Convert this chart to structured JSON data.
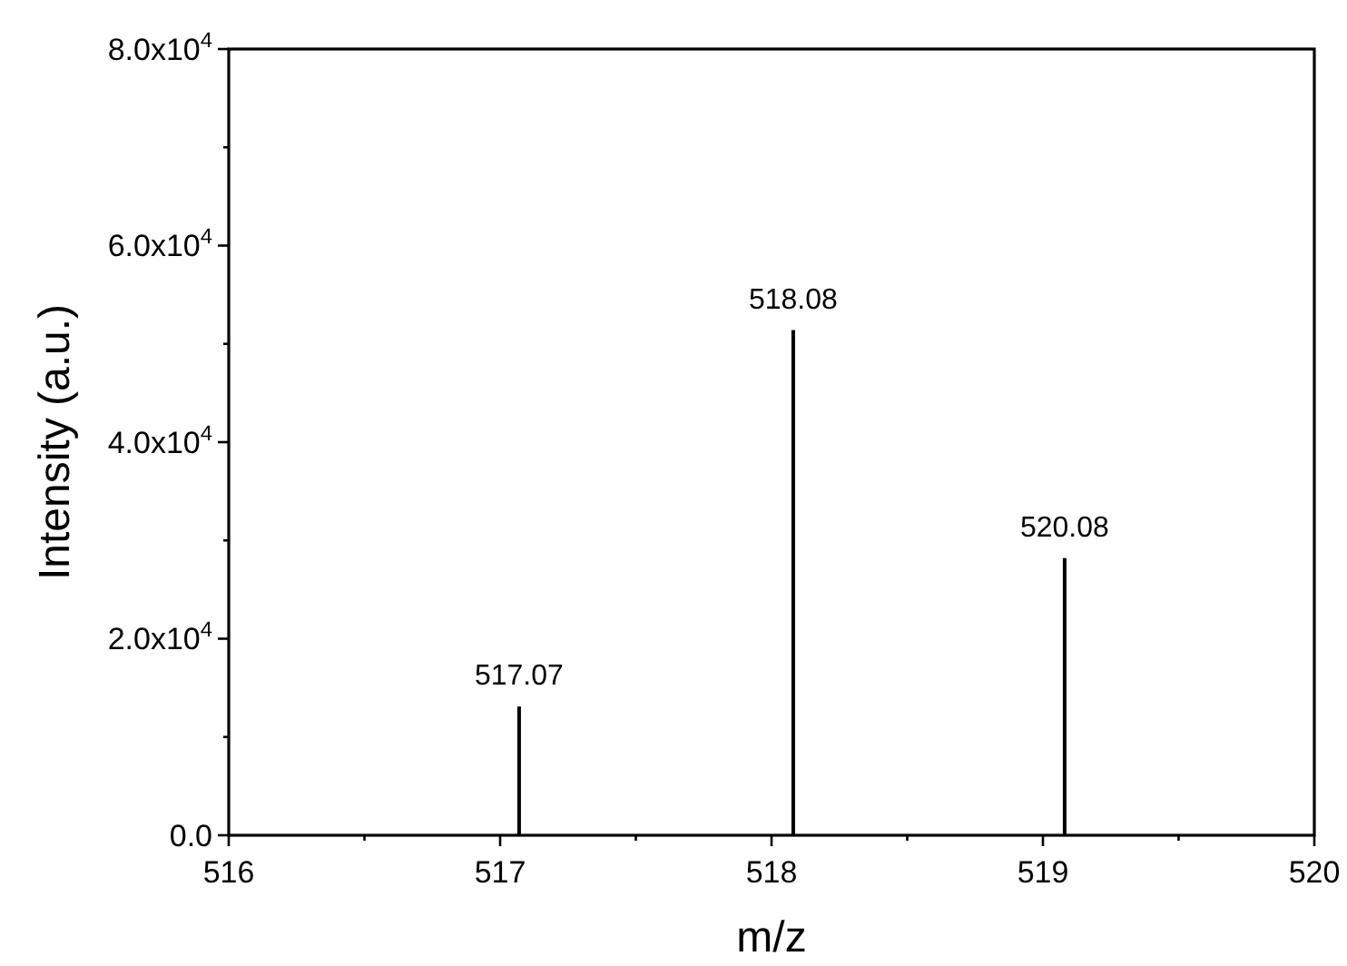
{
  "chart_data": {
    "type": "bar",
    "xlabel": "m/z",
    "ylabel": "Intensity (a.u.)",
    "x": [
      517.07,
      518.08,
      519.08
    ],
    "values": [
      13100,
      51400,
      28200
    ],
    "color": "#000000",
    "xlim": [
      516,
      520
    ],
    "ylim": [
      0,
      80000
    ],
    "xticks": [
      516,
      {
        "value": 516.5,
        "label": null
      },
      517,
      {
        "value": 517.5,
        "label": null
      },
      518,
      {
        "value": 518.5,
        "label": null
      },
      519,
      {
        "value": 519.5,
        "label": null
      },
      520
    ],
    "yticks": [
      {
        "value": 0,
        "label": "0.0"
      },
      {
        "value": 10000,
        "label": null
      },
      {
        "value": 20000,
        "label": "2.0x10$^{4}$"
      },
      {
        "value": 30000,
        "label": null
      },
      {
        "value": 40000,
        "label": "4.0x10$^{4}$"
      },
      {
        "value": 50000,
        "label": null
      },
      {
        "value": 60000,
        "label": "6.0x10$^{4}$"
      },
      {
        "value": 70000,
        "label": null
      },
      {
        "value": 80000,
        "label": "8.0x10$^{4}$"
      }
    ],
    "annotations": [
      {
        "text": "517.07",
        "x": 517.07,
        "y": 13100
      },
      {
        "text": "518.08",
        "x": 518.08,
        "y": 51400
      },
      {
        "text": "520.08",
        "x": 519.08,
        "y": 28200
      }
    ],
    "grid": false
  }
}
